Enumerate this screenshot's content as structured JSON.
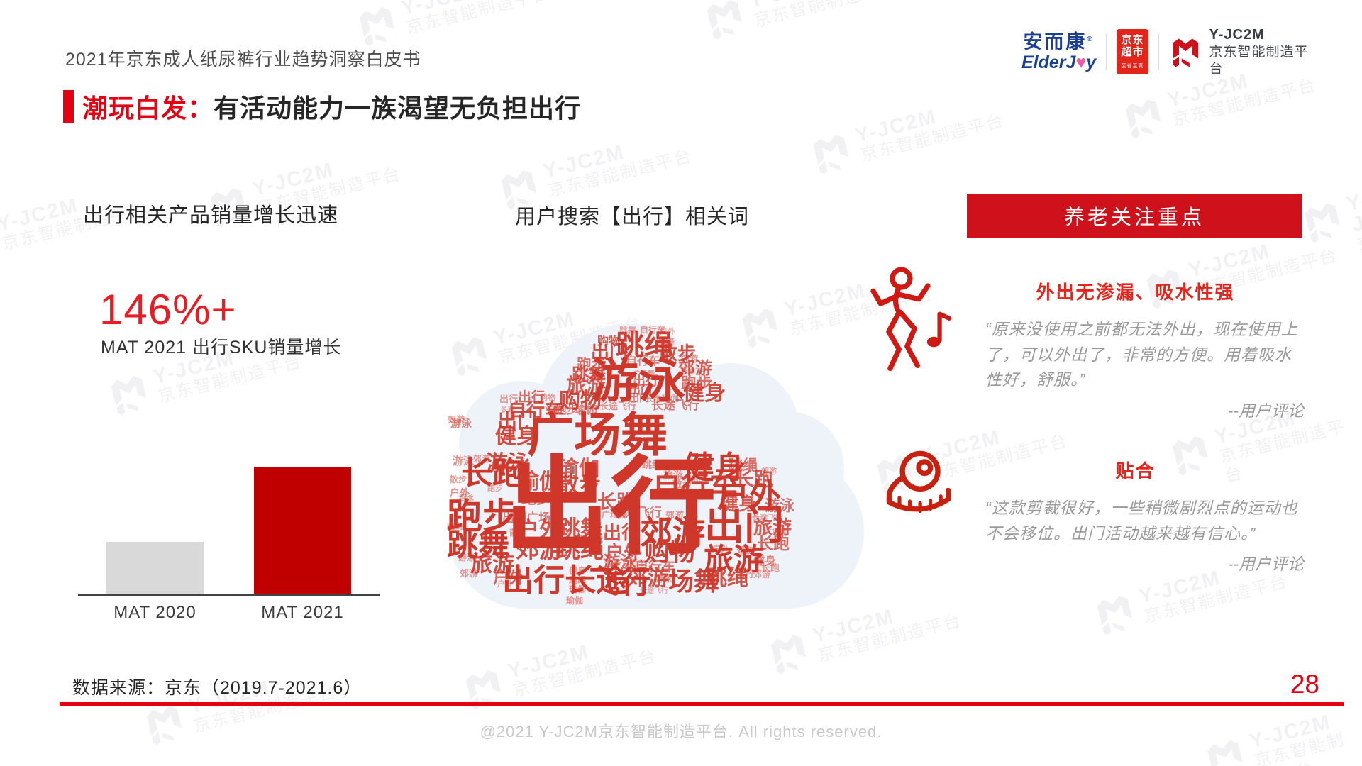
{
  "page": {
    "doc_title": "2021年京东成人纸尿裤行业趋势洞察白皮书",
    "page_number": "28",
    "footer": "@2021 Y-JC2M京东智能制造平台. All rights reserved.",
    "data_source": "数据来源：京东（2019.7-2021.6）"
  },
  "logos": {
    "elderjoy_cn": "安而康",
    "elderjoy_reg": "®",
    "elderjoy_en_part1": "ElderJ",
    "elderjoy_en_heart": "♥",
    "elderjoy_en_part2": "y",
    "jd_line1": "京东",
    "jd_line2": "超市",
    "jd_sub": "至省至真",
    "yjc2m_name": "Y-JC2M",
    "yjc2m_sub": "京东智能制造平台"
  },
  "title": {
    "highlight": "潮玩白发：",
    "rest": "有活动能力一族渴望无负担出行"
  },
  "left_section": {
    "header": "出行相关产品销量增长迅速",
    "big_number": "146%+",
    "big_number_caption": "MAT 2021 出行SKU销量增长"
  },
  "chart_data": {
    "type": "bar",
    "categories": [
      "MAT 2020",
      "MAT 2021"
    ],
    "values": [
      100,
      246
    ],
    "unit": "relative sales index (MAT 2020 = 100, +146% growth)",
    "title": "MAT 2021 出行SKU销量增长 146%+",
    "colors": [
      "#d9d9d9",
      "#c00000"
    ],
    "grid": false,
    "legend": false
  },
  "middle_section": {
    "header": "用户搜索【出行】相关词"
  },
  "wordcloud": {
    "center_word": "出行",
    "words": [
      [
        "跳舞",
        243,
        10,
        12,
        0.45
      ],
      [
        "自行车",
        272,
        9,
        12,
        0.5
      ],
      [
        "户外",
        300,
        13,
        11,
        0.4
      ],
      [
        "购物",
        212,
        24,
        16,
        0.8
      ],
      [
        "出门",
        203,
        33,
        26,
        0.9
      ],
      [
        "跳绳",
        238,
        17,
        40,
        0.95
      ],
      [
        "跳舞",
        295,
        26,
        13,
        0.5
      ],
      [
        "散步",
        299,
        35,
        26,
        0.85
      ],
      [
        "自行车",
        252,
        52,
        16,
        0.6
      ],
      [
        "郊游",
        330,
        50,
        12,
        0.5
      ],
      [
        "郊游",
        326,
        58,
        24,
        0.8
      ],
      [
        "游泳",
        204,
        54,
        66,
        1
      ],
      [
        "跑步",
        183,
        54,
        21,
        0.7
      ],
      [
        "跳舞",
        176,
        67,
        24,
        0.8
      ],
      [
        "旅游",
        168,
        80,
        28,
        0.8
      ],
      [
        "购物",
        158,
        101,
        30,
        0.9
      ],
      [
        "出行",
        262,
        78,
        18,
        0.7
      ],
      [
        "广场舞",
        263,
        73,
        10,
        0.5
      ],
      [
        "出门",
        257,
        93,
        16,
        0.75
      ],
      [
        "出门",
        257,
        104,
        14,
        0.6
      ],
      [
        "长途飞行",
        330,
        70,
        10,
        0.45
      ],
      [
        "跑步",
        330,
        80,
        22,
        0.7
      ],
      [
        "健身",
        333,
        90,
        30,
        0.9
      ],
      [
        "瑜伽",
        303,
        106,
        12,
        0.5
      ],
      [
        "长跑",
        280,
        108,
        11,
        0.5
      ],
      [
        "出行",
        100,
        101,
        19,
        0.75
      ],
      [
        "出行",
        74,
        106,
        13,
        0.5
      ],
      [
        "购物",
        131,
        106,
        11,
        0.45
      ],
      [
        "自行车",
        86,
        115,
        26,
        0.85
      ],
      [
        "出行",
        139,
        118,
        13,
        0.55
      ],
      [
        "跑步",
        153,
        121,
        16,
        0.6
      ],
      [
        "瑜伽",
        180,
        121,
        16,
        0.6
      ],
      [
        "长跑",
        76,
        124,
        10,
        0.45
      ],
      [
        "出门",
        71,
        130,
        28,
        0.9
      ],
      [
        "郊游",
        1,
        136,
        12,
        0.5
      ],
      [
        "游泳",
        5,
        140,
        15,
        0.6
      ],
      [
        "健身",
        68,
        151,
        30,
        0.9
      ],
      [
        "广场舞",
        113,
        130,
        66,
        1
      ],
      [
        "长途飞行",
        215,
        116,
        13,
        0.55
      ],
      [
        "长途飞行",
        288,
        113,
        17,
        0.65
      ],
      [
        "出行",
        80,
        190,
        150,
        1
      ],
      [
        "瑜伽",
        100,
        215,
        30,
        0.85
      ],
      [
        "瑜伽",
        157,
        197,
        29,
        0.8
      ],
      [
        "散步",
        155,
        218,
        31,
        0.9
      ],
      [
        "跑步",
        105,
        243,
        21,
        0.7
      ],
      [
        "出门广场舞",
        78,
        272,
        17,
        0.65
      ],
      [
        "户外",
        100,
        283,
        30,
        0.85
      ],
      [
        "散步",
        88,
        295,
        12,
        0.5
      ],
      [
        "郊游",
        97,
        308,
        33,
        0.9
      ],
      [
        "跳舞",
        157,
        280,
        31,
        0.85
      ],
      [
        "跳绳",
        155,
        308,
        33,
        0.9
      ],
      [
        "广场舞",
        178,
        303,
        14,
        0.5
      ],
      [
        "长跑",
        212,
        245,
        27,
        0.8
      ],
      [
        "广场舞",
        218,
        270,
        12,
        0.5
      ],
      [
        "长途飞行",
        235,
        264,
        17,
        0.6
      ],
      [
        "郊游",
        308,
        270,
        13,
        0.5
      ],
      [
        "出行",
        220,
        288,
        26,
        0.85
      ],
      [
        "户外",
        223,
        316,
        26,
        0.8
      ],
      [
        "游泳",
        220,
        332,
        24,
        0.75
      ],
      [
        "郊游",
        272,
        278,
        46,
        1
      ],
      [
        "购物",
        278,
        310,
        36,
        0.95
      ],
      [
        "自行车",
        265,
        340,
        19,
        0.7
      ],
      [
        "自行车",
        290,
        216,
        40,
        0.95
      ],
      [
        "跳绳",
        275,
        198,
        14,
        0.55
      ],
      [
        "旅游",
        305,
        213,
        14,
        0.55
      ],
      [
        "健身",
        333,
        188,
        44,
        1
      ],
      [
        "散步",
        318,
        226,
        14,
        0.55
      ],
      [
        "购物",
        337,
        222,
        10,
        0.4
      ],
      [
        "跳绳",
        396,
        196,
        21,
        0.7
      ],
      [
        "长跑",
        406,
        213,
        27,
        0.8
      ],
      [
        "郊游",
        443,
        210,
        11,
        0.45
      ],
      [
        "户外",
        381,
        226,
        45,
        1
      ],
      [
        "健身",
        386,
        249,
        25,
        0.8
      ],
      [
        "游泳",
        448,
        253,
        21,
        0.7
      ],
      [
        "出门",
        363,
        263,
        56,
        1
      ],
      [
        "长途飞行",
        430,
        275,
        11,
        0.45
      ],
      [
        "旅游",
        432,
        281,
        27,
        0.8
      ],
      [
        "长跑",
        437,
        305,
        23,
        0.75
      ],
      [
        "广场舞",
        448,
        296,
        10,
        0.4
      ],
      [
        "户外",
        374,
        318,
        12,
        0.5
      ],
      [
        "郊游",
        408,
        320,
        12,
        0.5
      ],
      [
        "旅游",
        362,
        318,
        42,
        1
      ],
      [
        "健身",
        432,
        334,
        16,
        0.6
      ],
      [
        "长跑",
        443,
        344,
        13,
        0.5
      ],
      [
        "郊游",
        432,
        354,
        12,
        0.45
      ],
      [
        "出行长途",
        78,
        347,
        44,
        1
      ],
      [
        "健身",
        172,
        349,
        12,
        0.5
      ],
      [
        "跳绳",
        172,
        362,
        12,
        0.5
      ],
      [
        "瑜伽",
        172,
        375,
        12,
        0.5
      ],
      [
        "飞行",
        200,
        350,
        44,
        1
      ],
      [
        "散步",
        222,
        339,
        12,
        0.5
      ],
      [
        "自行车",
        247,
        339,
        11,
        0.45
      ],
      [
        "郊游",
        253,
        351,
        30,
        0.85
      ],
      [
        "游泳",
        293,
        360,
        12,
        0.5
      ],
      [
        "场舞",
        312,
        352,
        36,
        0.95
      ],
      [
        "跳绳",
        365,
        351,
        30,
        0.85
      ],
      [
        "出行",
        407,
        353,
        13,
        0.5
      ],
      [
        "长途飞行",
        272,
        379,
        10,
        0.4
      ],
      [
        "瑜伽",
        168,
        391,
        12,
        0.5
      ],
      [
        "游泳",
        8,
        193,
        15,
        0.55
      ],
      [
        "郊游",
        37,
        191,
        12,
        0.5
      ],
      [
        "游泳",
        55,
        188,
        31,
        0.9
      ],
      [
        "瑜伽",
        62,
        201,
        12,
        0.5
      ],
      [
        "长跑",
        20,
        196,
        44,
        1
      ],
      [
        "散步",
        4,
        220,
        12,
        0.5
      ],
      [
        "户外",
        4,
        238,
        14,
        0.55
      ],
      [
        "游泳",
        16,
        247,
        11,
        0.45
      ],
      [
        "跑步",
        57,
        234,
        11,
        0.45
      ],
      [
        "跑步",
        0,
        253,
        50,
        1
      ],
      [
        "跳绳",
        0,
        288,
        11,
        0.5
      ],
      [
        "跳舞",
        0,
        297,
        44,
        1
      ],
      [
        "游泳",
        16,
        330,
        12,
        0.5
      ],
      [
        "旅游",
        33,
        330,
        31,
        0.9
      ],
      [
        "郊游",
        18,
        352,
        13,
        0.5
      ],
      [
        "户外",
        65,
        353,
        23,
        0.75
      ],
      [
        "户外",
        71,
        369,
        11,
        0.45
      ]
    ]
  },
  "right_section": {
    "banner": "养老关注重点",
    "blocks": [
      {
        "icon": "dancing-person-icon",
        "heading": "外出无渗漏、吸水性强",
        "quote": "“原来没使用之前都无法外出，现在使用上了，可以外出了，非常的方便。用着吸水性好，舒服。”",
        "attribution": "--用户评论"
      },
      {
        "icon": "measuring-tape-icon",
        "heading": "贴合",
        "quote": "“这款剪裁很好，一些稍微剧烈点的运动也不会移位。出门活动越来越有信心。”",
        "attribution": "--用户评论"
      }
    ]
  },
  "watermark": {
    "line1": "Y-JC2M",
    "line2": "京东智能制造平台"
  },
  "colors": {
    "accent_red": "#e60012",
    "banner_red": "#cf111b",
    "bar_red": "#c00000",
    "bar_gray": "#d9d9d9",
    "brand_blue": "#1b3f94",
    "jd_red": "#e1251b",
    "quote_gray": "#9a9a9a",
    "cloud_bg": "#eef3fa",
    "word_red": "#cf372a"
  }
}
